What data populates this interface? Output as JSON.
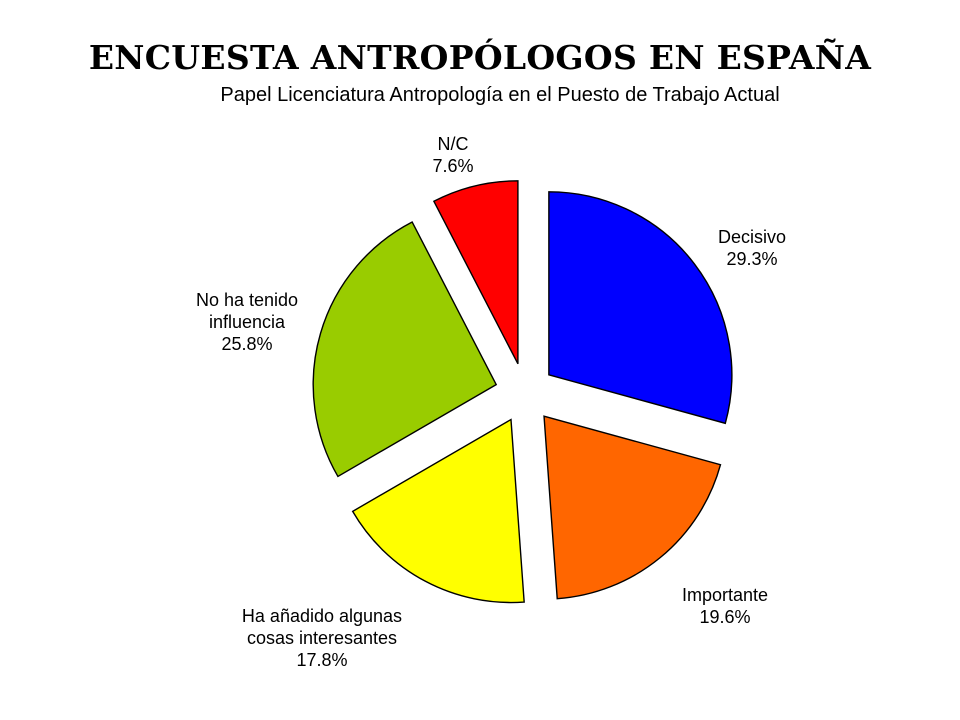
{
  "slide": {
    "title": "ENCUESTA ANTROPÓLOGOS EN ESPAÑA"
  },
  "chart_data": {
    "type": "pie",
    "title": "Papel Licenciatura Antropología en el Puesto de Trabajo Actual",
    "exploded": true,
    "slices": [
      {
        "label": [
          "Decisivo"
        ],
        "value": 29.3,
        "value_label": "29.3%",
        "color": "#0000ff"
      },
      {
        "label": [
          "Importante"
        ],
        "value": 19.6,
        "value_label": "19.6%",
        "color": "#ff6600"
      },
      {
        "label": [
          "Ha añadido algunas",
          "cosas interesantes"
        ],
        "value": 17.8,
        "value_label": "17.8%",
        "color": "#ffff00"
      },
      {
        "label": [
          "No ha tenido",
          "influencia"
        ],
        "value": 25.8,
        "value_label": "25.8%",
        "color": "#99cc00"
      },
      {
        "label": [
          "N/C"
        ],
        "value": 7.6,
        "value_label": "7.6%",
        "color": "#ff0000"
      }
    ]
  }
}
